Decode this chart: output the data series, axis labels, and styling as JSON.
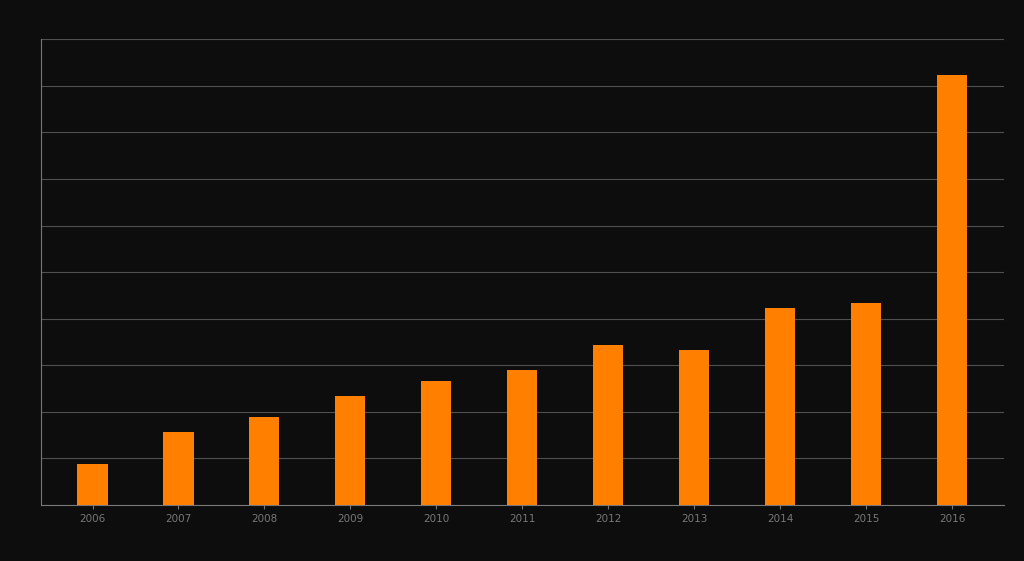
{
  "categories": [
    "2006",
    "2007",
    "2008",
    "2009",
    "2010",
    "2011",
    "2012",
    "2013",
    "2014",
    "2015",
    "2016"
  ],
  "values": [
    8,
    14,
    17,
    21,
    24,
    26,
    31,
    30,
    38,
    39,
    83
  ],
  "bar_color": "#FF8000",
  "background_color": "#0d0d0d",
  "plot_bg_color": "#0d0d0d",
  "grid_color": "#505050",
  "tick_color": "#777777",
  "spine_color": "#777777",
  "ylim_max": 90,
  "ytick_count": 10,
  "bar_width": 0.35,
  "xticklabel_size": 7.5
}
